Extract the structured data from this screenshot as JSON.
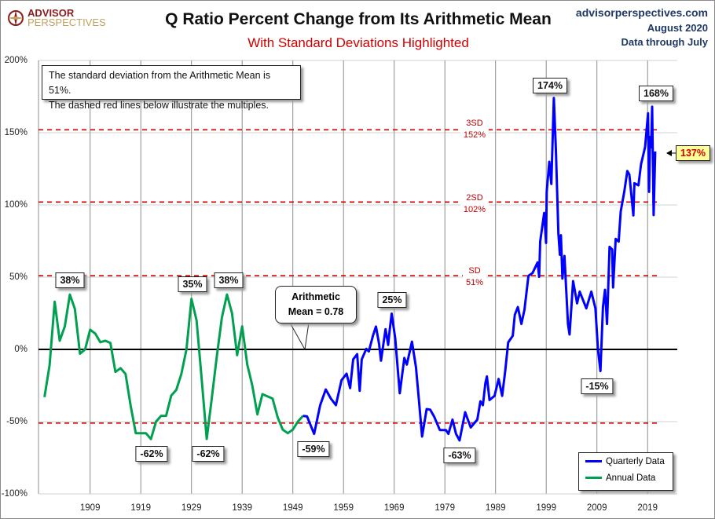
{
  "header": {
    "logo_line1": "ADVISOR",
    "logo_line2": "PERSPECTIVES",
    "site": "advisorperspectives.com",
    "date": "August 2020",
    "data_through": "Data through July"
  },
  "chart_data": {
    "type": "line",
    "title": "Q Ratio Percent Change from Its Arithmetic Mean",
    "subtitle": "With Standard Deviations Highlighted",
    "ylim": [
      -100,
      200
    ],
    "yticks": [
      "200%",
      "150%",
      "100%",
      "50%",
      "0%",
      "-50%",
      "-100%"
    ],
    "ytick_values": [
      200,
      150,
      100,
      50,
      0,
      -50,
      -100
    ],
    "xticks": [
      "1909",
      "1919",
      "1929",
      "1939",
      "1949",
      "1959",
      "1969",
      "1979",
      "1989",
      "1999",
      "2009",
      "2019"
    ],
    "xtick_values": [
      1909,
      1919,
      1929,
      1939,
      1949,
      1959,
      1969,
      1979,
      1989,
      1999,
      2009,
      2019
    ],
    "grid": true,
    "legend_position": "bottom-right",
    "colors": {
      "quarterly": "#0000ff",
      "annual": "#00a050",
      "sd_lines": "#cc0000",
      "mean_line": "#000000"
    },
    "note_line1": "The standard deviation from the Arithmetic Mean is 51%.",
    "note_line2": "The dashed red lines below illustrate the multiples.",
    "mean_callout_line1": "Arithmetic",
    "mean_callout_line2": "Mean = 0.78",
    "sd_lines": [
      {
        "label": "3SD",
        "value_label": "152%",
        "value": 152
      },
      {
        "label": "2SD",
        "value_label": "102%",
        "value": 102
      },
      {
        "label": "SD",
        "value_label": "51%",
        "value": 51
      },
      {
        "label": "",
        "value_label": "",
        "value": -51
      }
    ],
    "series": [
      {
        "name": "Quarterly Data",
        "x": [
          1951,
          1951.8,
          1953.2,
          1954.4,
          1955.5,
          1956.5,
          1957.5,
          1958.6,
          1959.6,
          1960.3,
          1960.9,
          1961.7,
          1962.2,
          1962.6,
          1963.5,
          1964,
          1964.8,
          1965.4,
          1966,
          1966.4,
          1967.3,
          1967.8,
          1968.1,
          1968.5,
          1969.2,
          1970.1,
          1971,
          1971.5,
          1972.5,
          1973.3,
          1973.8,
          1974.5,
          1975.4,
          1976.1,
          1976.9,
          1978,
          1979.2,
          1979.7,
          1980.5,
          1981.2,
          1981.9,
          1983,
          1984.1,
          1985.4,
          1986,
          1986.5,
          1987,
          1987.3,
          1987.8,
          1988.8,
          1989.6,
          1990.3,
          1990.9,
          1991.5,
          1992.4,
          1992.8,
          1993.4,
          1994.1,
          1994.7,
          1995.5,
          1996.3,
          1997.3,
          1997.6,
          1997.8,
          1998.6,
          1998.97,
          1999.1,
          1999.6,
          2000,
          2000.5,
          2000.9,
          2001.4,
          2001.7,
          2001.9,
          2002.2,
          2002.6,
          2003.3,
          2003.6,
          2004.3,
          2005.1,
          2005.6,
          2006.4,
          2006.9,
          2007.9,
          2008.7,
          2009.2,
          2009.7,
          2010.2,
          2010.6,
          2011,
          2011.5,
          2012,
          2012.2,
          2012.7,
          2013.3,
          2013.7,
          2014.4,
          2015,
          2015.4,
          2016.2,
          2016.4,
          2017.2,
          2017.7,
          2018.5,
          2019.1,
          2019.3,
          2019.5,
          2019.7,
          2019.9,
          2020.2,
          2020.5
        ],
        "values": [
          -46,
          -46.4,
          -58.5,
          -38.6,
          -27.7,
          -34,
          -38.6,
          -21.4,
          -16.8,
          -26.8,
          -6.9,
          -3.3,
          -28.6,
          -6.9,
          0.4,
          -1.4,
          9.4,
          15.8,
          4,
          -7.8,
          14,
          3.1,
          13,
          24.8,
          7.6,
          -30.4,
          -5.9,
          -10.5,
          5.4,
          -12.3,
          -32.2,
          -60.3,
          -41.3,
          -41.7,
          -46.7,
          -55.8,
          -55.8,
          -58.5,
          -48.6,
          -58.5,
          -63,
          -43.5,
          -54,
          -48.6,
          -35.9,
          -38.6,
          -23.2,
          -18.7,
          -35,
          -32.2,
          -20.5,
          -32.2,
          -15,
          4.9,
          9.4,
          23.9,
          29.3,
          17.6,
          27.5,
          51,
          52.9,
          60.2,
          50.2,
          74.6,
          94.5,
          73.7,
          109,
          129.9,
          114.5,
          174,
          138,
          80,
          65.5,
          79,
          49,
          64.7,
          17.5,
          10.3,
          47.3,
          31.9,
          40,
          33,
          28.4,
          40,
          28.4,
          0.3,
          -15,
          29.4,
          41.3,
          17.6,
          71,
          69.2,
          42.9,
          76.5,
          74.6,
          95.5,
          109,
          123.5,
          121,
          92.7,
          115,
          113.6,
          128,
          140,
          163.4,
          109,
          147,
          140,
          168,
          93,
          137
        ]
      },
      {
        "name": "Annual Data",
        "x": [
          1900,
          1901,
          1902,
          1903,
          1904,
          1905,
          1906,
          1907,
          1908,
          1909,
          1910,
          1911,
          1912,
          1913,
          1914,
          1915,
          1916,
          1917,
          1918,
          1919,
          1920,
          1921,
          1922,
          1923,
          1924,
          1925,
          1926,
          1927,
          1928,
          1929,
          1930,
          1931,
          1932,
          1933,
          1934,
          1935,
          1936,
          1937,
          1938,
          1939,
          1940,
          1941,
          1942,
          1943,
          1945,
          1946,
          1947,
          1948,
          1949,
          1950,
          1951
        ],
        "values": [
          -33,
          -11,
          33,
          6,
          16,
          38,
          28,
          -3,
          0,
          13.6,
          11,
          5,
          6,
          4.5,
          -15.6,
          -13,
          -17,
          -39,
          -58,
          -58,
          -58,
          -62,
          -50,
          -46,
          -46,
          -32,
          -28,
          -17,
          0,
          35,
          20,
          -20,
          -62,
          -34,
          -5,
          22,
          38,
          25,
          -4,
          16,
          -10.5,
          -25,
          -45,
          -31,
          -34,
          -47,
          -55.5,
          -58,
          -55.5,
          -50,
          -46
        ]
      }
    ],
    "annotations": [
      "38%",
      "35%",
      "38%",
      "-62%",
      "-62%",
      "-59%",
      "25%",
      "-63%",
      "-15%",
      "174%",
      "168%",
      "137%"
    ]
  }
}
